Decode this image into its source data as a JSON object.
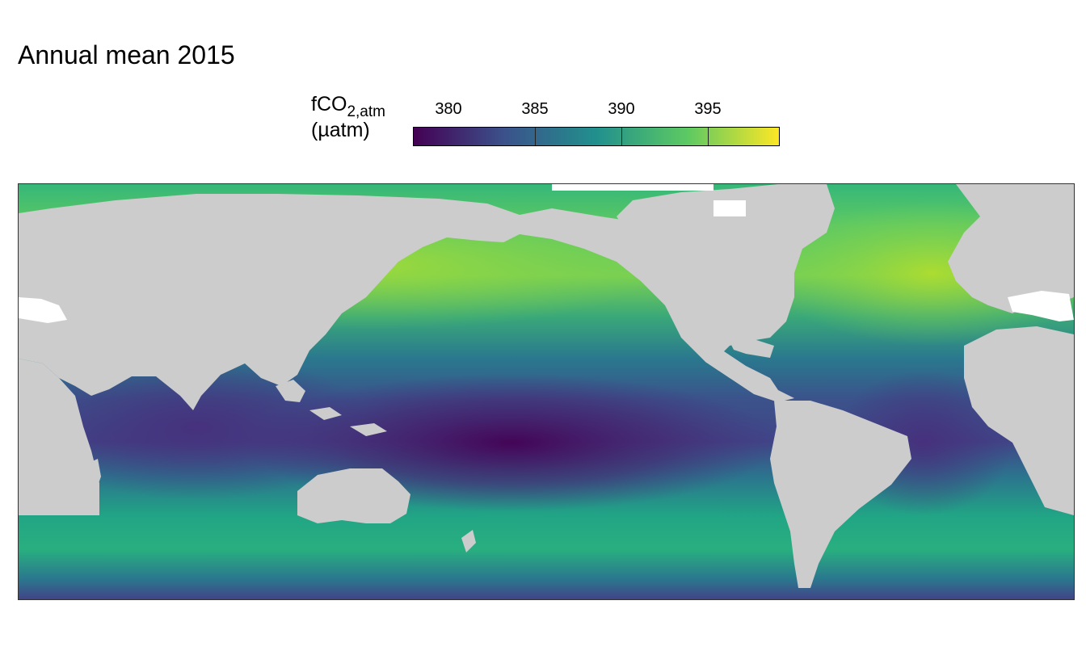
{
  "title": "Annual mean 2015",
  "legend": {
    "variable": "fCO",
    "subscript": "2,atm",
    "unit": "(µatm)",
    "ticks": [
      "380",
      "385",
      "390",
      "395"
    ],
    "tick_values": [
      380,
      385,
      390,
      395
    ],
    "range": [
      377.5,
      398.7
    ],
    "colormap": "viridis",
    "colors": [
      "#440154",
      "#3b528b",
      "#21908d",
      "#5dc963",
      "#fde725"
    ]
  },
  "map": {
    "projection": "equirectangular, Pacific-centered",
    "land_color": "#cccccc",
    "missing_color": "#ffffff"
  }
}
